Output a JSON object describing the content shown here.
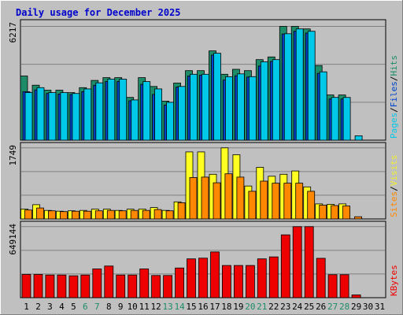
{
  "chart_data": {
    "type": "bar",
    "title": "Daily usage for December 2025",
    "categories": [
      "1",
      "2",
      "3",
      "4",
      "5",
      "6",
      "7",
      "8",
      "9",
      "10",
      "11",
      "12",
      "13",
      "14",
      "15",
      "16",
      "17",
      "18",
      "19",
      "20",
      "21",
      "22",
      "23",
      "24",
      "25",
      "26",
      "27",
      "28",
      "29",
      "30",
      "31"
    ],
    "weekend_days": [
      "6",
      "7",
      "13",
      "14",
      "20",
      "21",
      "27",
      "28"
    ],
    "panels": [
      {
        "id": "pages-files-hits",
        "ymax_label": "6217",
        "ymax": 6217,
        "ylabels": [
          {
            "text": "Pages",
            "color": "#00c8e8"
          },
          {
            "text": "/",
            "color": "#000000"
          },
          {
            "text": "Files",
            "color": "#0044cc"
          },
          {
            "text": "/",
            "color": "#000000"
          },
          {
            "text": "Hits",
            "color": "#1e8c68"
          }
        ],
        "series": [
          {
            "name": "Hits",
            "color": "#1e8c68",
            "values": [
              3507,
              3001,
              2733,
              2733,
              2600,
              2867,
              3267,
              3414,
              3414,
              2334,
              3414,
              2934,
              2134,
              3120,
              3800,
              3800,
              4880,
              3600,
              3870,
              3800,
              4400,
              4547,
              6217,
              6217,
              6080,
              4080,
              2467,
              2467,
              0,
              0,
              0
            ]
          },
          {
            "name": "Files",
            "color": "#0044cc",
            "values": [
              2650,
              2750,
              2550,
              2520,
              2500,
              2650,
              3000,
              3200,
              3200,
              2150,
              3050,
              2500,
              1920,
              2900,
              3500,
              3550,
              4650,
              3280,
              3520,
              3450,
              4050,
              4300,
              5800,
              5950,
              5850,
              3650,
              2250,
              2250,
              0,
              0,
              0
            ]
          },
          {
            "name": "Pages",
            "color": "#00c8e8",
            "values": [
              2601,
              2867,
              2600,
              2600,
              2550,
              2800,
              3133,
              3333,
              3333,
              2200,
              3200,
              2800,
              2067,
              2934,
              3600,
              3600,
              4747,
              3467,
              3620,
              3470,
              4280,
              4400,
              5817,
              6080,
              5950,
              3734,
              2334,
              2334,
              240,
              0,
              0
            ]
          }
        ]
      },
      {
        "id": "sites-visits",
        "ymax_label": "1749",
        "ymax": 1749,
        "ylabels": [
          {
            "text": "Sites",
            "color": "#ff8800"
          },
          {
            "text": "/",
            "color": "#000000"
          },
          {
            "text": "Visits",
            "color": "#eeee33"
          }
        ],
        "series": [
          {
            "name": "Visits",
            "color": "#ffff22",
            "values": [
              245,
              350,
              210,
              190,
              200,
              210,
              240,
              240,
              210,
              240,
              245,
              280,
              210,
              420,
              1650,
              1650,
              1100,
              1749,
              1580,
              810,
              1270,
              1050,
              1100,
              1180,
              790,
              370,
              360,
              370,
              0,
              0,
              0
            ]
          },
          {
            "name": "Sites",
            "color": "#ff8800",
            "values": [
              220,
              270,
              200,
              180,
              190,
              190,
              200,
              210,
              200,
              210,
              210,
              230,
              200,
              400,
              1020,
              1030,
              890,
              1110,
              1030,
              680,
              930,
              880,
              880,
              880,
              680,
              340,
              330,
              320,
              55,
              0,
              0
            ]
          }
        ]
      },
      {
        "id": "kbytes",
        "ymax_label": "649144",
        "ymax": 649144,
        "ylabels": [
          {
            "text": "KBytes",
            "color": "#ee0000"
          }
        ],
        "series": [
          {
            "name": "KBytes",
            "color": "#ee0000",
            "values": [
              212000,
              212000,
              207000,
              207000,
              200000,
              207000,
              263000,
              289000,
              207000,
              207000,
              263000,
              203000,
              203000,
              271000,
              355000,
              361000,
              418000,
              294000,
              294000,
              294000,
              355000,
              373000,
              574000,
              649144,
              649144,
              360000,
              210000,
              210000,
              25000,
              0,
              0
            ]
          }
        ]
      }
    ]
  }
}
